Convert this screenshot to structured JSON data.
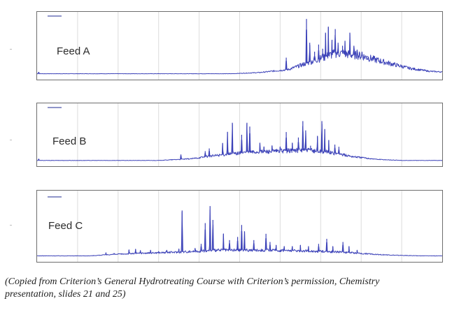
{
  "chart_data": [
    {
      "type": "line",
      "panel_label": "Feed A",
      "legend_entry": "",
      "line_color": "#3c42b8",
      "grid": true,
      "xlim": [
        0,
        100
      ],
      "ylim": [
        0,
        100
      ],
      "baseline": 3,
      "peaks": [
        {
          "x": 0.4,
          "y": 6,
          "w": 0.15
        },
        {
          "x": 61.5,
          "y": 30,
          "w": 0.12
        },
        {
          "x": 66.5,
          "y": 95,
          "w": 0.12
        },
        {
          "x": 67.3,
          "y": 55,
          "w": 0.12
        },
        {
          "x": 68.5,
          "y": 40,
          "w": 0.12
        },
        {
          "x": 69.5,
          "y": 52,
          "w": 0.12
        },
        {
          "x": 70.5,
          "y": 45,
          "w": 0.12
        },
        {
          "x": 71.2,
          "y": 72,
          "w": 0.12
        },
        {
          "x": 71.9,
          "y": 82,
          "w": 0.12
        },
        {
          "x": 72.8,
          "y": 60,
          "w": 0.12
        },
        {
          "x": 73.6,
          "y": 78,
          "w": 0.12
        },
        {
          "x": 74.3,
          "y": 55,
          "w": 0.12
        },
        {
          "x": 75.4,
          "y": 50,
          "w": 0.12
        },
        {
          "x": 76.0,
          "y": 58,
          "w": 0.12
        },
        {
          "x": 77.2,
          "y": 72,
          "w": 0.12
        },
        {
          "x": 78.2,
          "y": 50,
          "w": 0.12
        },
        {
          "x": 79.0,
          "y": 43,
          "w": 0.12
        },
        {
          "x": 80.2,
          "y": 40,
          "w": 0.12
        },
        {
          "x": 81.5,
          "y": 33,
          "w": 0.12
        },
        {
          "x": 82.8,
          "y": 30,
          "w": 0.12
        }
      ],
      "envelope": [
        [
          0,
          3
        ],
        [
          48,
          3
        ],
        [
          55,
          5
        ],
        [
          62,
          10
        ],
        [
          68,
          24
        ],
        [
          74,
          38
        ],
        [
          80,
          33
        ],
        [
          86,
          22
        ],
        [
          92,
          12
        ],
        [
          97,
          7
        ],
        [
          100,
          6
        ]
      ]
    },
    {
      "type": "line",
      "panel_label": "Feed B",
      "legend_entry": "",
      "line_color": "#3c42b8",
      "grid": true,
      "xlim": [
        0,
        100
      ],
      "ylim": [
        0,
        100
      ],
      "baseline": 3,
      "peaks": [
        {
          "x": 0.4,
          "y": 6,
          "w": 0.15
        },
        {
          "x": 35.5,
          "y": 14,
          "w": 0.12
        },
        {
          "x": 41.5,
          "y": 20,
          "w": 0.12
        },
        {
          "x": 42.5,
          "y": 25,
          "w": 0.12
        },
        {
          "x": 45.8,
          "y": 35,
          "w": 0.12
        },
        {
          "x": 47.0,
          "y": 55,
          "w": 0.12
        },
        {
          "x": 48.2,
          "y": 72,
          "w": 0.12
        },
        {
          "x": 50.5,
          "y": 50,
          "w": 0.12
        },
        {
          "x": 51.8,
          "y": 72,
          "w": 0.12
        },
        {
          "x": 52.5,
          "y": 65,
          "w": 0.12
        },
        {
          "x": 55.0,
          "y": 35,
          "w": 0.12
        },
        {
          "x": 56.0,
          "y": 28,
          "w": 0.12
        },
        {
          "x": 58.0,
          "y": 30,
          "w": 0.12
        },
        {
          "x": 60.0,
          "y": 28,
          "w": 0.12
        },
        {
          "x": 61.5,
          "y": 55,
          "w": 0.12
        },
        {
          "x": 63.0,
          "y": 35,
          "w": 0.12
        },
        {
          "x": 64.5,
          "y": 45,
          "w": 0.12
        },
        {
          "x": 65.6,
          "y": 75,
          "w": 0.12
        },
        {
          "x": 66.3,
          "y": 58,
          "w": 0.12
        },
        {
          "x": 67.5,
          "y": 30,
          "w": 0.12
        },
        {
          "x": 69.2,
          "y": 48,
          "w": 0.12
        },
        {
          "x": 70.3,
          "y": 75,
          "w": 0.12
        },
        {
          "x": 71.0,
          "y": 60,
          "w": 0.12
        },
        {
          "x": 72.0,
          "y": 40,
          "w": 0.12
        },
        {
          "x": 73.5,
          "y": 32,
          "w": 0.12
        },
        {
          "x": 74.5,
          "y": 28,
          "w": 0.12
        }
      ],
      "envelope": [
        [
          0,
          3
        ],
        [
          30,
          3
        ],
        [
          38,
          6
        ],
        [
          44,
          12
        ],
        [
          52,
          18
        ],
        [
          60,
          20
        ],
        [
          66,
          22
        ],
        [
          72,
          18
        ],
        [
          78,
          10
        ],
        [
          84,
          5
        ],
        [
          90,
          3
        ],
        [
          100,
          3
        ]
      ]
    },
    {
      "type": "line",
      "panel_label": "Feed C",
      "legend_entry": "",
      "line_color": "#3c42b8",
      "grid": true,
      "xlim": [
        0,
        100
      ],
      "ylim": [
        0,
        100
      ],
      "baseline": 3,
      "peaks": [
        {
          "x": 17.0,
          "y": 8,
          "w": 0.12
        },
        {
          "x": 19.0,
          "y": 7,
          "w": 0.12
        },
        {
          "x": 22.7,
          "y": 13,
          "w": 0.12
        },
        {
          "x": 24.3,
          "y": 14,
          "w": 0.12
        },
        {
          "x": 25.5,
          "y": 12,
          "w": 0.12
        },
        {
          "x": 28.0,
          "y": 12,
          "w": 0.12
        },
        {
          "x": 30.0,
          "y": 10,
          "w": 0.12
        },
        {
          "x": 32.0,
          "y": 12,
          "w": 0.12
        },
        {
          "x": 35.0,
          "y": 14,
          "w": 0.12
        },
        {
          "x": 35.8,
          "y": 75,
          "w": 0.12
        },
        {
          "x": 39.0,
          "y": 15,
          "w": 0.12
        },
        {
          "x": 40.5,
          "y": 22,
          "w": 0.12
        },
        {
          "x": 41.5,
          "y": 55,
          "w": 0.12
        },
        {
          "x": 42.7,
          "y": 82,
          "w": 0.12
        },
        {
          "x": 43.4,
          "y": 60,
          "w": 0.12
        },
        {
          "x": 46.0,
          "y": 38,
          "w": 0.12
        },
        {
          "x": 47.5,
          "y": 28,
          "w": 0.12
        },
        {
          "x": 49.5,
          "y": 33,
          "w": 0.12
        },
        {
          "x": 50.5,
          "y": 52,
          "w": 0.12
        },
        {
          "x": 51.2,
          "y": 42,
          "w": 0.12
        },
        {
          "x": 53.5,
          "y": 28,
          "w": 0.12
        },
        {
          "x": 56.5,
          "y": 38,
          "w": 0.12
        },
        {
          "x": 57.5,
          "y": 25,
          "w": 0.12
        },
        {
          "x": 59.0,
          "y": 20,
          "w": 0.12
        },
        {
          "x": 61.0,
          "y": 18,
          "w": 0.12
        },
        {
          "x": 63.0,
          "y": 18,
          "w": 0.12
        },
        {
          "x": 65.0,
          "y": 20,
          "w": 0.12
        },
        {
          "x": 67.0,
          "y": 18,
          "w": 0.12
        },
        {
          "x": 69.5,
          "y": 22,
          "w": 0.12
        },
        {
          "x": 71.5,
          "y": 30,
          "w": 0.12
        },
        {
          "x": 73.0,
          "y": 18,
          "w": 0.12
        },
        {
          "x": 75.5,
          "y": 25,
          "w": 0.12
        },
        {
          "x": 77.0,
          "y": 18,
          "w": 0.12
        },
        {
          "x": 79.0,
          "y": 12,
          "w": 0.12
        }
      ],
      "envelope": [
        [
          0,
          3
        ],
        [
          13,
          3
        ],
        [
          18,
          5
        ],
        [
          25,
          7
        ],
        [
          35,
          9
        ],
        [
          45,
          12
        ],
        [
          55,
          12
        ],
        [
          65,
          11
        ],
        [
          75,
          9
        ],
        [
          82,
          6
        ],
        [
          88,
          4
        ],
        [
          95,
          3
        ],
        [
          100,
          3
        ]
      ]
    }
  ],
  "caption": {
    "line1": "(Copied from Criterion’s General Hydrotreating Course with Criterion’s permission, Chemistry",
    "line2": "presentation, slides 21 and 25)"
  }
}
